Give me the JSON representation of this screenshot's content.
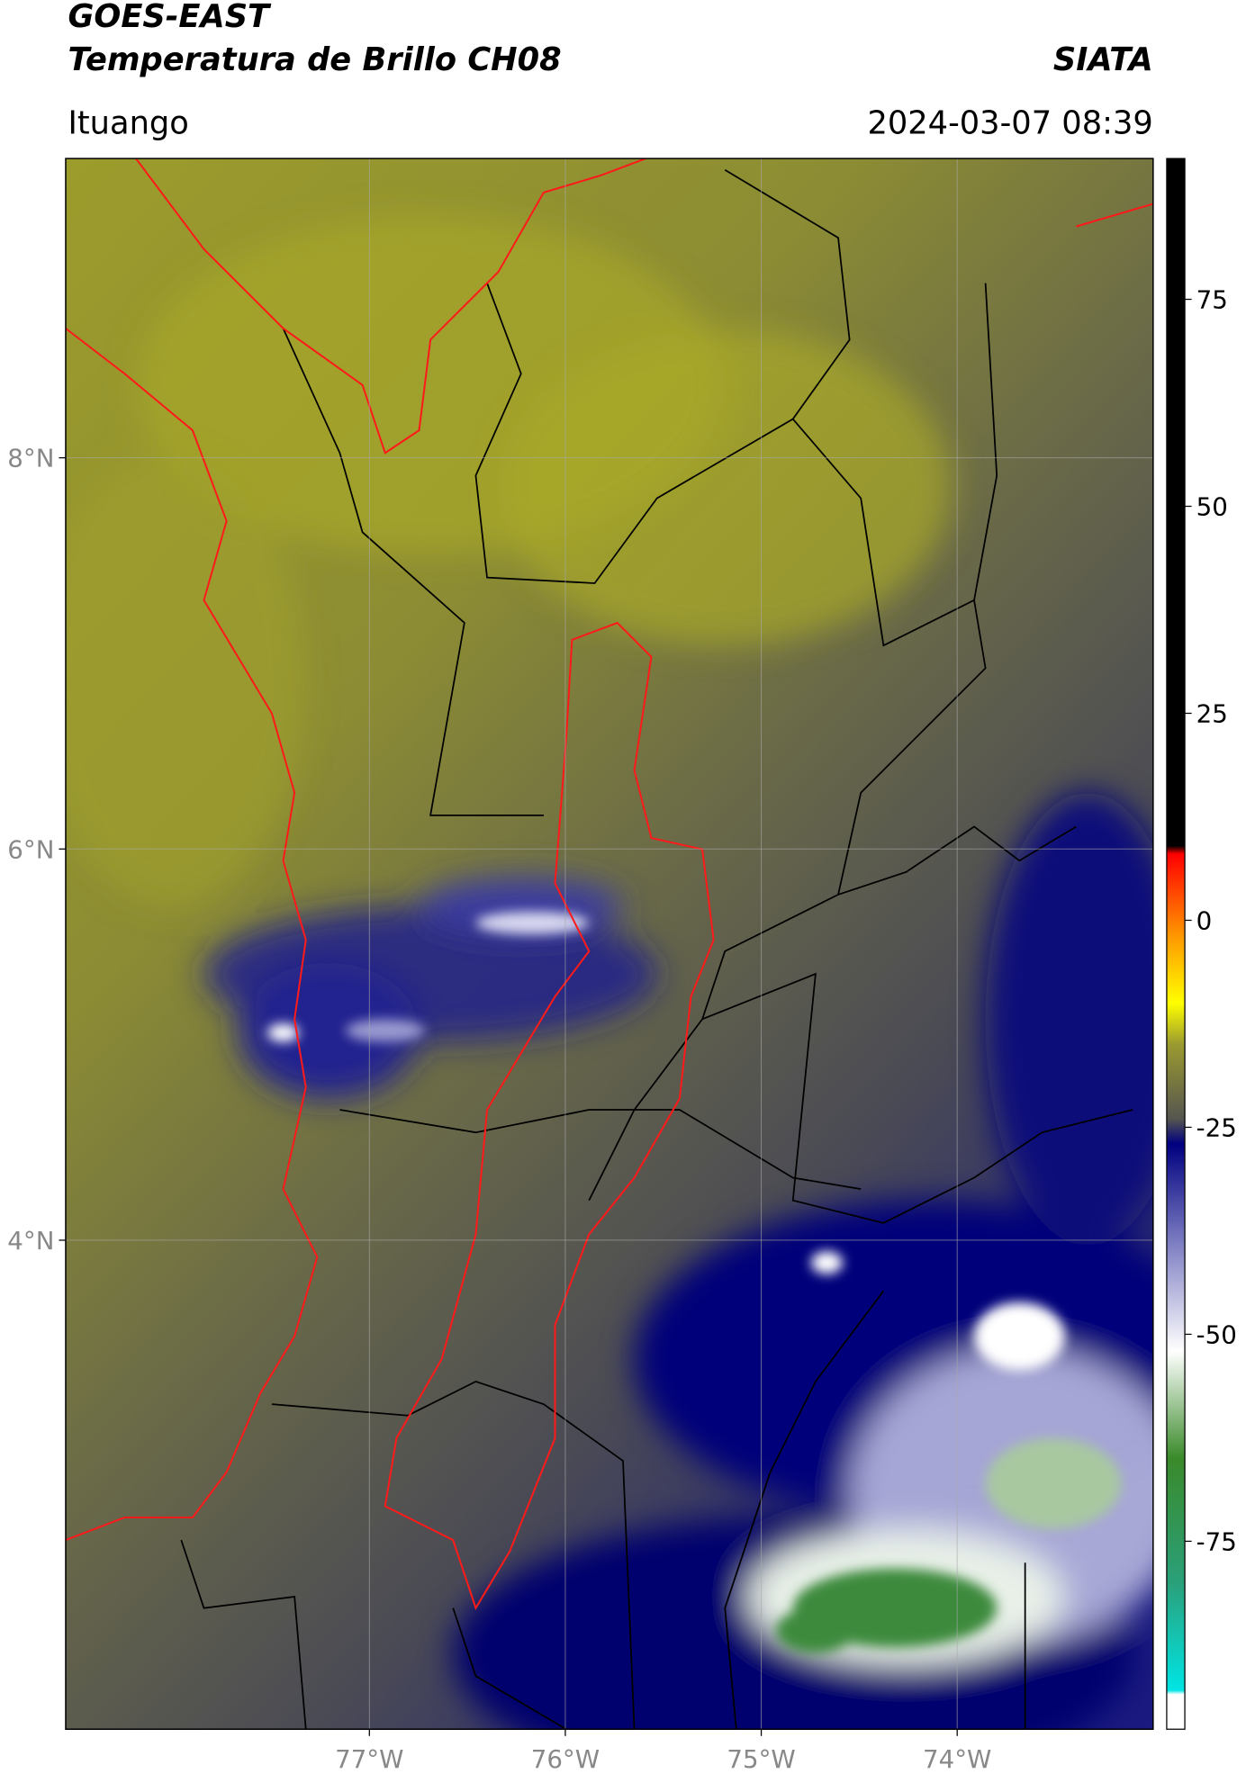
{
  "chart_data": {
    "type": "map",
    "title": "GOES-EAST",
    "subtitle": "Temperatura de Brillo CH08",
    "source": "SIATA",
    "location": "Ituango",
    "date": "2024-03-07 08:39",
    "xlim": [
      -78.55,
      -73.0
    ],
    "ylim": [
      1.5,
      9.53
    ],
    "xticks": [
      {
        "value": -77,
        "label": "77°W"
      },
      {
        "value": -76,
        "label": "76°W"
      },
      {
        "value": -75,
        "label": "75°W"
      },
      {
        "value": -74,
        "label": "74°W"
      }
    ],
    "yticks": [
      {
        "value": 8,
        "label": "8°N"
      },
      {
        "value": 6,
        "label": "6°N"
      },
      {
        "value": 4,
        "label": "4°N"
      }
    ],
    "grid": true,
    "colorbar": {
      "lim": [
        -97.7,
        92
      ],
      "ticks": [
        75,
        50,
        25,
        0,
        -25,
        -50,
        -75
      ],
      "colormap": [
        {
          "value": -97.7,
          "color": "#ffffff"
        },
        {
          "value": -93.5,
          "color": "#ffffff"
        },
        {
          "value": -93,
          "color": "#00e5e5"
        },
        {
          "value": -80,
          "color": "#2aa07a"
        },
        {
          "value": -65,
          "color": "#3a8a2a"
        },
        {
          "value": -52,
          "color": "#ffffff"
        },
        {
          "value": -40,
          "color": "#8888c8"
        },
        {
          "value": -27,
          "color": "#000080"
        },
        {
          "value": -24,
          "color": "#555550"
        },
        {
          "value": -15,
          "color": "#9a9a30"
        },
        {
          "value": -10,
          "color": "#ffff00"
        },
        {
          "value": -2,
          "color": "#ff9900"
        },
        {
          "value": 8,
          "color": "#ff0000"
        },
        {
          "value": 9,
          "color": "#000000"
        },
        {
          "value": 92,
          "color": "#000000"
        }
      ]
    }
  }
}
